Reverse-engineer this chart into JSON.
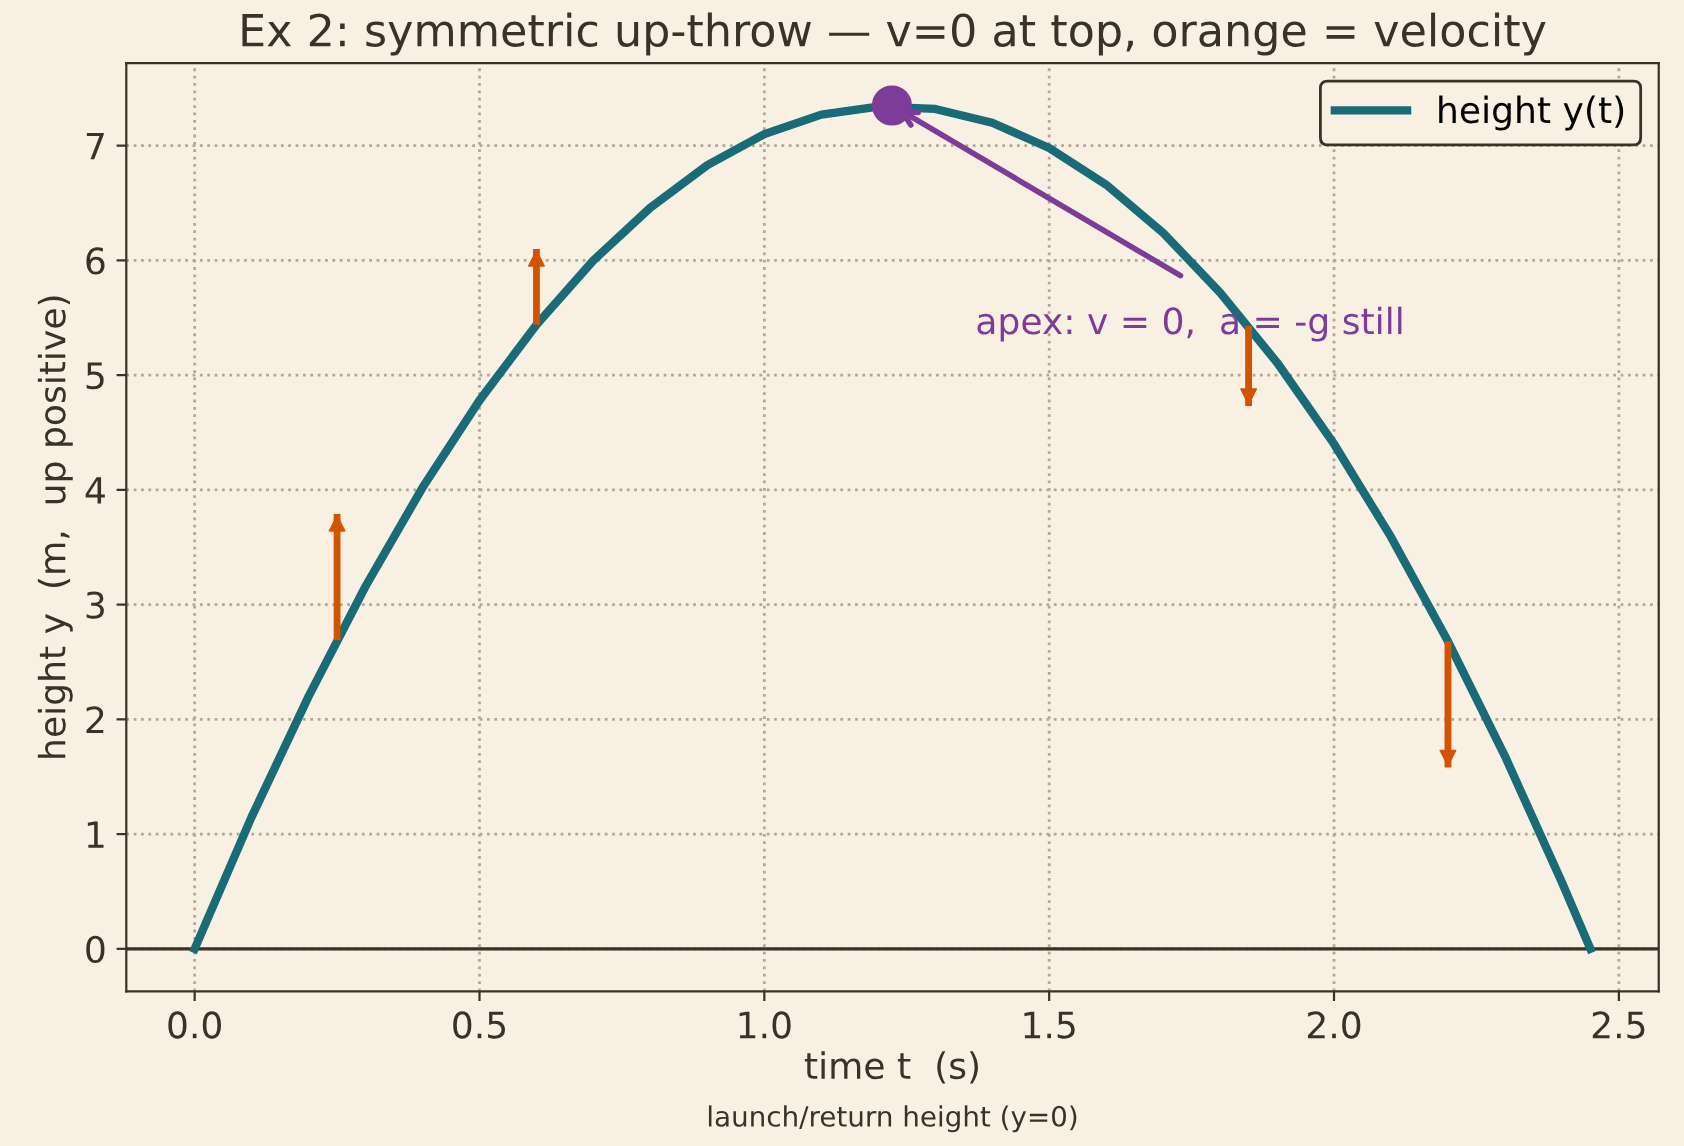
{
  "chart_data": {
    "type": "line",
    "title": "Ex 2: symmetric up-throw — v=0 at top, orange = velocity",
    "xlabel": "time t  (s)",
    "ylabel": "height y  (m,  up positive)",
    "series": [
      {
        "name": "height y(t)",
        "color": "#1a6b78",
        "x": [
          0,
          0.1,
          0.2,
          0.3,
          0.4,
          0.5,
          0.6,
          0.7,
          0.8,
          0.9,
          1.0,
          1.1,
          1.2,
          1.3,
          1.4,
          1.5,
          1.6,
          1.7,
          1.8,
          1.9,
          2.0,
          2.1,
          2.2,
          2.3,
          2.4,
          2.45
        ],
        "values": [
          0,
          1.15,
          2.2,
          3.16,
          4.02,
          4.78,
          5.44,
          6.0,
          6.46,
          6.83,
          7.1,
          7.27,
          7.34,
          7.32,
          7.2,
          6.98,
          6.66,
          6.24,
          5.72,
          5.11,
          4.4,
          3.59,
          2.68,
          1.68,
          0.58,
          0
        ]
      },
      {
        "type": "bar",
        "color": "#d35400",
        "x": [
          0.25,
          0.6,
          1.85,
          2.2
        ],
        "base": [
          2.69,
          5.44,
          5.43,
          2.68
        ],
        "values": [
          1.1,
          0.66,
          -0.7,
          -1.1
        ]
      },
      {
        "type": "scatter",
        "color": "#7d3c98",
        "x": [
          1.224
        ],
        "values": [
          7.35
        ]
      }
    ],
    "annotations": [
      {
        "text": "apex: v = 0,  a = -g still",
        "x": 1.224,
        "y": 7.35
      }
    ],
    "ref_lines": [
      {
        "axis": "y",
        "value": 0,
        "label": "launch/return height (y=0)",
        "color": "#3b3127"
      }
    ],
    "xlim": [
      -0.12,
      2.57
    ],
    "ylim": [
      -0.37,
      7.72
    ],
    "xticks": [
      {
        "value": 0,
        "label": "0.0"
      },
      {
        "value": 0.5,
        "label": "0.5"
      },
      {
        "value": 1,
        "label": "1.0"
      },
      {
        "value": 1.5,
        "label": "1.5"
      },
      {
        "value": 2,
        "label": "2.0"
      },
      {
        "value": 2.5,
        "label": "2.5"
      }
    ],
    "yticks": [
      0,
      1,
      2,
      3,
      4,
      5,
      6,
      7
    ],
    "grid": true,
    "legend": "top right",
    "line_style": "solid"
  }
}
